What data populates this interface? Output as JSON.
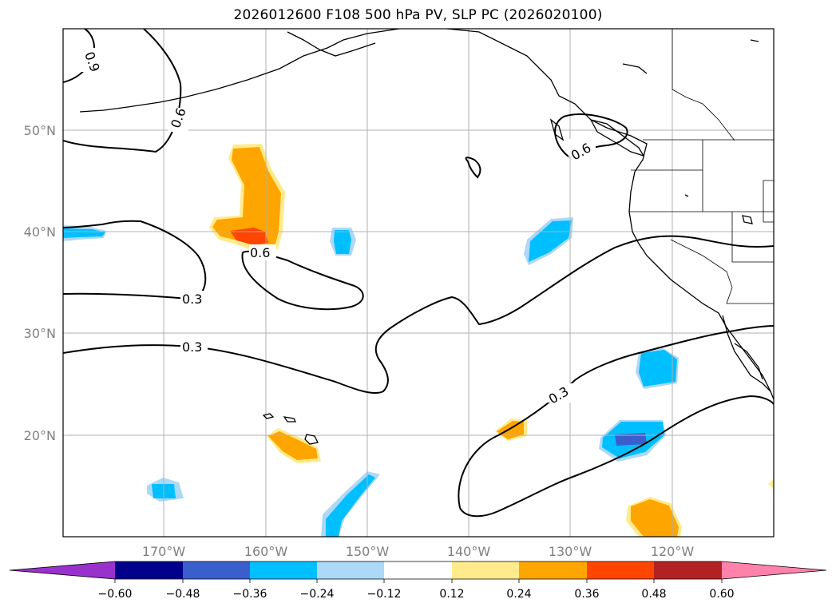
{
  "title": "2026012600 F108 500 hPa PV, SLP PC (2026020100)",
  "lat_labels": [
    "50°N",
    "40°N",
    "30°N",
    "20°N"
  ],
  "lon_labels": [
    "170°W",
    "160°W",
    "150°W",
    "140°W",
    "130°W",
    "120°W"
  ],
  "contour_labels": [
    "0.9",
    "0.6",
    "0.6",
    "0.6",
    "0.3",
    "0.3",
    "0.3"
  ],
  "colorbar": {
    "tick_labels": [
      "−0.60",
      "−0.48",
      "−0.36",
      "−0.24",
      "−0.12",
      "0.12",
      "0.24",
      "0.36",
      "0.48",
      "0.60"
    ],
    "colors": [
      "#9932cc",
      "#00008b",
      "#3a5fcd",
      "#00bfff",
      "#add8f7",
      "#ffffff",
      "#ffeb8c",
      "#ffa500",
      "#ff4500",
      "#b22222",
      "#ff82ab"
    ]
  },
  "colors": {
    "light_blue": "#add8f7",
    "blue": "#00bfff",
    "royal_blue": "#3a5fcd",
    "yellow": "#ffeb8c",
    "orange": "#ffa500",
    "orange_red": "#ff4500",
    "gridline": "#b0b0b0",
    "tick_text": "#808080"
  }
}
